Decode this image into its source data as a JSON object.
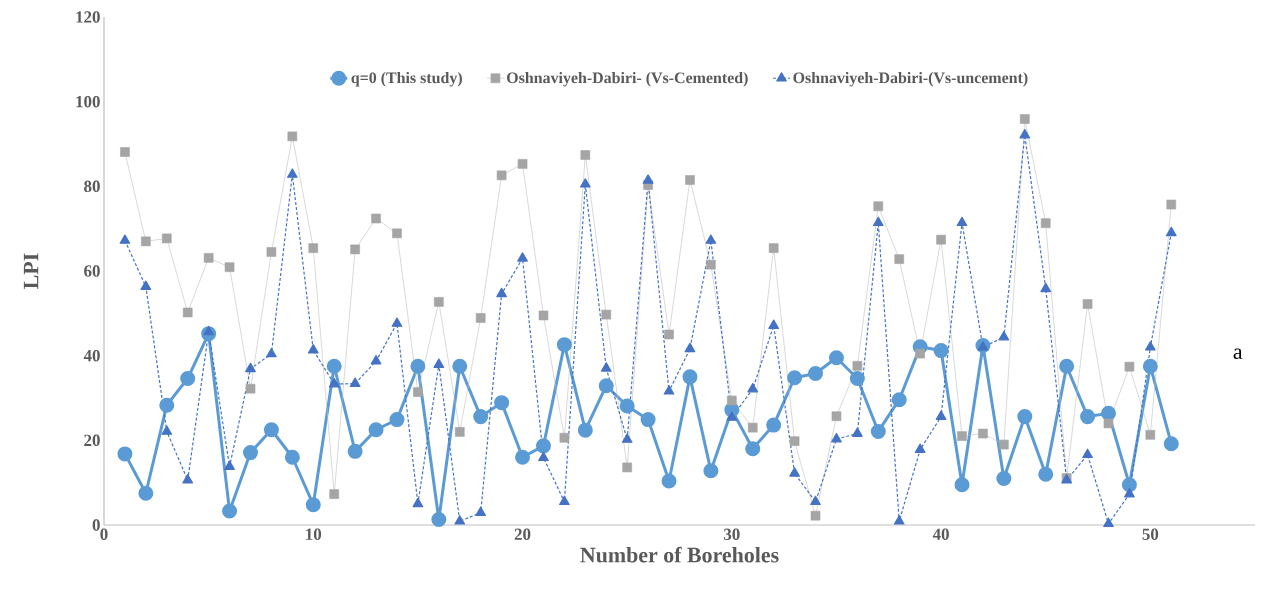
{
  "chart_data": {
    "type": "line",
    "xlabel": "Number of Boreholes",
    "ylabel": "LPI",
    "x": [
      1,
      2,
      3,
      4,
      5,
      6,
      7,
      8,
      9,
      10,
      11,
      12,
      13,
      14,
      15,
      16,
      17,
      18,
      19,
      20,
      21,
      22,
      23,
      24,
      25,
      26,
      27,
      28,
      29,
      30,
      31,
      32,
      33,
      34,
      35,
      36,
      37,
      38,
      39,
      40,
      41,
      42,
      43,
      44,
      45,
      46,
      47,
      48,
      49,
      50,
      51
    ],
    "xlim": [
      0,
      55
    ],
    "xticks": [
      0,
      10,
      20,
      30,
      40,
      50
    ],
    "ylim": [
      0,
      120
    ],
    "yticks": [
      0,
      20,
      40,
      60,
      80,
      100,
      120
    ],
    "legend": "top",
    "annotations": [
      "a"
    ],
    "series": [
      {
        "name": "q=0 (This study)",
        "color": "#5b9bd5",
        "marker": "circle",
        "line_style": "solid",
        "values": [
          16.8,
          7.5,
          28.3,
          34.6,
          45.2,
          3.3,
          17.1,
          22.5,
          16.0,
          4.8,
          37.5,
          17.4,
          22.5,
          24.9,
          37.5,
          1.3,
          37.5,
          25.6,
          28.9,
          16.0,
          18.7,
          42.6,
          22.4,
          32.9,
          28.1,
          24.9,
          10.4,
          35.0,
          12.8,
          27.2,
          18.0,
          23.6,
          34.8,
          35.8,
          39.5,
          34.6,
          22.1,
          29.6,
          42.1,
          41.2,
          9.5,
          42.4,
          11.0,
          25.6,
          12.0,
          37.5,
          25.6,
          26.4,
          9.5,
          37.5,
          19.2
        ]
      },
      {
        "name": "Oshnaviyeh-Dabiri- (Vs-Cemented)",
        "color": "#a5a5a5",
        "marker": "square",
        "line_style": "solid",
        "values": [
          88.1,
          67.0,
          67.7,
          50.2,
          63.1,
          60.9,
          32.2,
          64.5,
          91.8,
          65.4,
          7.3,
          65.1,
          72.4,
          68.9,
          31.4,
          52.7,
          22.0,
          48.9,
          82.6,
          85.3,
          49.5,
          20.6,
          87.4,
          49.7,
          13.6,
          80.3,
          45.0,
          81.5,
          61.5,
          29.4,
          23.0,
          65.4,
          19.8,
          2.2,
          25.7,
          37.6,
          75.3,
          62.8,
          40.5,
          67.4,
          21.0,
          21.6,
          19.0,
          95.9,
          71.3,
          11.1,
          52.2,
          24.0,
          37.4,
          21.3,
          75.7
        ]
      },
      {
        "name": "Oshnaviyeh-Dabiri-(Vs-uncement)",
        "color": "#4472c4",
        "marker": "triangle",
        "line_style": "dashed",
        "values": [
          67.2,
          56.3,
          22.1,
          10.6,
          45.6,
          13.8,
          36.9,
          40.4,
          82.8,
          41.3,
          33.3,
          33.4,
          38.7,
          47.6,
          5.0,
          37.9,
          0.9,
          2.9,
          54.6,
          63.0,
          15.9,
          5.5,
          80.5,
          37.0,
          20.2,
          81.4,
          31.6,
          41.6,
          67.2,
          25.4,
          32.1,
          47.1,
          12.2,
          5.5,
          20.3,
          21.6,
          71.4,
          0.9,
          17.8,
          25.6,
          71.4,
          42.0,
          44.4,
          92.1,
          55.8,
          10.6,
          16.6,
          0.3,
          7.3,
          42.0,
          69.0
        ]
      }
    ]
  }
}
